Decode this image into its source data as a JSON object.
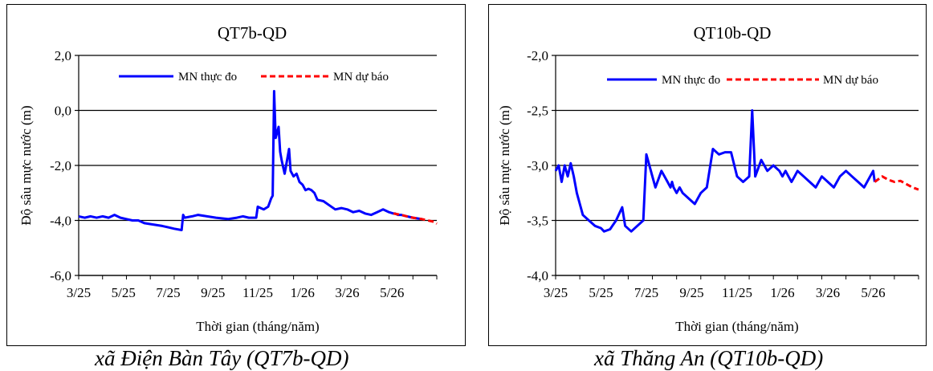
{
  "chart_data": [
    {
      "type": "line",
      "title": "QT7b-QD",
      "xlabel": "Thời gian  (tháng/năm)",
      "ylabel": "Độ sâu mực nước (m)",
      "ylim": [
        -6.0,
        2.0
      ],
      "yticks": [
        "2,0",
        "0,0",
        "-2,0",
        "-4,0",
        "-6,0"
      ],
      "ytick_values": [
        2.0,
        0.0,
        -2.0,
        -4.0,
        -6.0
      ],
      "xticks": [
        "3/25",
        "5/25",
        "7/25",
        "9/25",
        "11/25",
        "1/26",
        "3/26",
        "5/26"
      ],
      "grid": "horizontal",
      "legend_position": "top",
      "series": [
        {
          "name": "MN thực đo",
          "color": "#0000ff",
          "style": "solid",
          "x": [
            0,
            0.2,
            0.4,
            0.6,
            0.8,
            1.0,
            1.2,
            1.4,
            1.6,
            1.8,
            2.0,
            2.2,
            2.5,
            2.8,
            3.0,
            3.2,
            3.45,
            3.5,
            3.55,
            3.8,
            4.0,
            4.3,
            4.6,
            5.0,
            5.3,
            5.5,
            5.7,
            5.95,
            6.0,
            6.1,
            6.2,
            6.35,
            6.45,
            6.5,
            6.55,
            6.6,
            6.7,
            6.75,
            6.8,
            6.9,
            7.0,
            7.05,
            7.1,
            7.2,
            7.3,
            7.4,
            7.5,
            7.6,
            7.7,
            7.8,
            7.9,
            8.0,
            8.2,
            8.4,
            8.6,
            8.8,
            9.0,
            9.2,
            9.4,
            9.6,
            9.8,
            10.0,
            10.2,
            10.4,
            10.55,
            10.6,
            10.7,
            10.8,
            11.0,
            11.2,
            11.5
          ],
          "y": [
            -3.85,
            -3.9,
            -3.85,
            -3.9,
            -3.85,
            -3.9,
            -3.8,
            -3.9,
            -3.95,
            -4.0,
            -4.0,
            -4.1,
            -4.15,
            -4.2,
            -4.25,
            -4.3,
            -4.35,
            -3.8,
            -3.9,
            -3.85,
            -3.8,
            -3.85,
            -3.9,
            -3.95,
            -3.9,
            -3.85,
            -3.9,
            -3.9,
            -3.5,
            -3.55,
            -3.6,
            -3.5,
            -3.2,
            -3.1,
            0.7,
            -1.0,
            -0.6,
            -1.5,
            -1.8,
            -2.3,
            -1.7,
            -1.4,
            -2.2,
            -2.4,
            -2.3,
            -2.6,
            -2.7,
            -2.9,
            -2.85,
            -2.9,
            -3.0,
            -3.25,
            -3.3,
            -3.45,
            -3.6,
            -3.55,
            -3.6,
            -3.7,
            -3.65,
            -3.75,
            -3.8,
            -3.7,
            -3.6,
            -3.7,
            -3.75,
            -3.75,
            -3.8,
            -3.8,
            -3.85,
            -3.9,
            -3.95
          ]
        },
        {
          "name": "MN dự báo",
          "color": "#ff0000",
          "style": "dashed",
          "x": [
            10.55,
            10.8,
            11.0,
            11.2,
            11.5,
            11.7,
            11.9,
            12.0
          ],
          "y": [
            -3.75,
            -3.8,
            -3.85,
            -3.9,
            -3.95,
            -4.0,
            -4.05,
            -4.12
          ]
        }
      ]
    },
    {
      "type": "line",
      "title": "QT10b-QD",
      "xlabel": "Thời gian  (tháng/năm)",
      "ylabel": "Độ sâu mực nước (m)",
      "ylim": [
        -4.0,
        -2.0
      ],
      "yticks": [
        "-2,0",
        "-2,5",
        "-3,0",
        "-3,5",
        "-4,0"
      ],
      "ytick_values": [
        -2.0,
        -2.5,
        -3.0,
        -3.5,
        -4.0
      ],
      "xticks": [
        "3/25",
        "5/25",
        "7/25",
        "9/25",
        "11/25",
        "1/26",
        "3/26",
        "5/26"
      ],
      "grid": "horizontal",
      "legend_position": "top",
      "series": [
        {
          "name": "MN thực đo",
          "color": "#0000ff",
          "style": "solid",
          "x": [
            0,
            0.1,
            0.2,
            0.3,
            0.4,
            0.5,
            0.6,
            0.7,
            0.9,
            1.1,
            1.3,
            1.5,
            1.6,
            1.8,
            2.0,
            2.2,
            2.3,
            2.5,
            2.7,
            2.9,
            3.0,
            3.2,
            3.3,
            3.5,
            3.7,
            3.8,
            3.85,
            3.9,
            4.0,
            4.1,
            4.2,
            4.4,
            4.6,
            4.8,
            5.0,
            5.2,
            5.4,
            5.6,
            5.8,
            6.0,
            6.2,
            6.4,
            6.5,
            6.6,
            6.8,
            7.0,
            7.2,
            7.4,
            7.5,
            7.6,
            7.7,
            7.8,
            7.9,
            8.0,
            8.2,
            8.4,
            8.6,
            8.8,
            9.0,
            9.2,
            9.4,
            9.6,
            9.8,
            10.0,
            10.2,
            10.4,
            10.5,
            10.55
          ],
          "y": [
            -3.05,
            -3.0,
            -3.15,
            -3.0,
            -3.1,
            -2.98,
            -3.1,
            -3.25,
            -3.45,
            -3.5,
            -3.55,
            -3.57,
            -3.6,
            -3.58,
            -3.5,
            -3.38,
            -3.55,
            -3.6,
            -3.55,
            -3.5,
            -2.9,
            -3.1,
            -3.2,
            -3.05,
            -3.15,
            -3.2,
            -3.15,
            -3.2,
            -3.25,
            -3.2,
            -3.25,
            -3.3,
            -3.35,
            -3.25,
            -3.2,
            -2.85,
            -2.9,
            -2.88,
            -2.88,
            -3.1,
            -3.15,
            -3.1,
            -2.5,
            -3.1,
            -2.95,
            -3.05,
            -3.0,
            -3.05,
            -3.1,
            -3.05,
            -3.1,
            -3.15,
            -3.1,
            -3.05,
            -3.1,
            -3.15,
            -3.2,
            -3.1,
            -3.15,
            -3.2,
            -3.1,
            -3.05,
            -3.1,
            -3.15,
            -3.2,
            -3.1,
            -3.05,
            -3.15
          ]
        },
        {
          "name": "MN dự báo",
          "color": "#ff0000",
          "style": "dashed",
          "x": [
            10.55,
            10.8,
            11.0,
            11.2,
            11.4,
            11.6,
            11.8,
            12.0
          ],
          "y": [
            -3.15,
            -3.1,
            -3.13,
            -3.15,
            -3.14,
            -3.17,
            -3.2,
            -3.22
          ]
        }
      ]
    }
  ],
  "captions": {
    "left": "xã Điện Bàn Tây (QT7b-QD)",
    "right": "xã Thăng An (QT10b-QD)"
  }
}
